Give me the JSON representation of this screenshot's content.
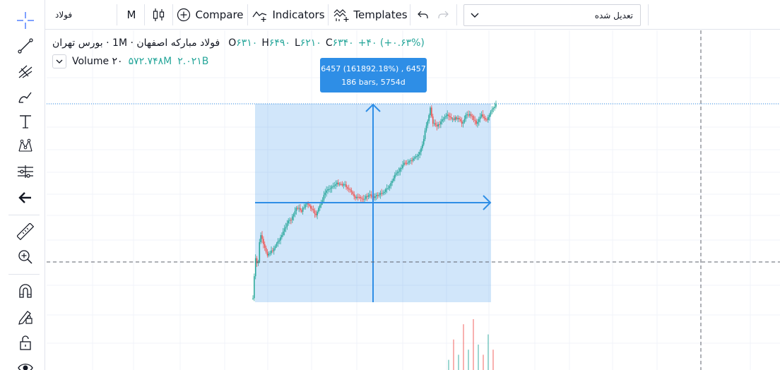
{
  "toolbar": {
    "symbol": "فولاد",
    "interval": "M",
    "compare_label": "Compare",
    "indicators_label": "Indicators",
    "templates_label": "Templates",
    "adjust_select": "تعدیل شده"
  },
  "legend": {
    "title": "فولاد مبارکه اصفهان · 1M · بورس تهران",
    "o_label": "O",
    "o_value": "۶۳۱۰",
    "h_label": "H",
    "h_value": "۶۴۹۰",
    "l_label": "L",
    "l_value": "۶۲۱۰",
    "c_label": "C",
    "c_value": "۶۳۴۰",
    "change": "+۴۰ (+۰.۶۳%)",
    "volume_label": "Volume ۲۰",
    "volume_value1": "۵۷۲.۷۴۸M",
    "volume_value2": "۲.۰۲۱B"
  },
  "measure": {
    "line1": "6457 (161892.18%) , 6457",
    "line2": "186 bars, 5754d"
  },
  "chart_data": {
    "type": "candlestick",
    "price_trace": [
      [
        0,
        0.98
      ],
      [
        0.01,
        0.78
      ],
      [
        0.02,
        0.82
      ],
      [
        0.03,
        0.65
      ],
      [
        0.045,
        0.72
      ],
      [
        0.06,
        0.76
      ],
      [
        0.08,
        0.74
      ],
      [
        0.1,
        0.7
      ],
      [
        0.12,
        0.66
      ],
      [
        0.14,
        0.6
      ],
      [
        0.16,
        0.58
      ],
      [
        0.18,
        0.52
      ],
      [
        0.2,
        0.54
      ],
      [
        0.22,
        0.5
      ],
      [
        0.24,
        0.53
      ],
      [
        0.26,
        0.56
      ],
      [
        0.28,
        0.5
      ],
      [
        0.3,
        0.44
      ],
      [
        0.32,
        0.42
      ],
      [
        0.35,
        0.4
      ],
      [
        0.38,
        0.41
      ],
      [
        0.4,
        0.44
      ],
      [
        0.42,
        0.47
      ],
      [
        0.45,
        0.48
      ],
      [
        0.48,
        0.46
      ],
      [
        0.5,
        0.47
      ],
      [
        0.53,
        0.45
      ],
      [
        0.56,
        0.42
      ],
      [
        0.58,
        0.37
      ],
      [
        0.6,
        0.34
      ],
      [
        0.62,
        0.3
      ],
      [
        0.65,
        0.29
      ],
      [
        0.68,
        0.26
      ],
      [
        0.7,
        0.2
      ],
      [
        0.71,
        0.12
      ],
      [
        0.72,
        0.08
      ],
      [
        0.73,
        0.02
      ],
      [
        0.74,
        0.1
      ],
      [
        0.76,
        0.11
      ],
      [
        0.78,
        0.08
      ],
      [
        0.8,
        0.06
      ],
      [
        0.82,
        0.08
      ],
      [
        0.84,
        0.07
      ],
      [
        0.86,
        0.1
      ],
      [
        0.88,
        0.05
      ],
      [
        0.9,
        0.06
      ],
      [
        0.92,
        0.1
      ],
      [
        0.94,
        0.05
      ],
      [
        0.96,
        0.09
      ],
      [
        0.98,
        0.04
      ],
      [
        1.0,
        0.0
      ]
    ],
    "volume_trace": [
      0.2,
      0.6,
      0.3,
      0.9,
      0.4,
      1.0,
      0.5,
      0.3,
      0.7,
      0.4
    ]
  }
}
